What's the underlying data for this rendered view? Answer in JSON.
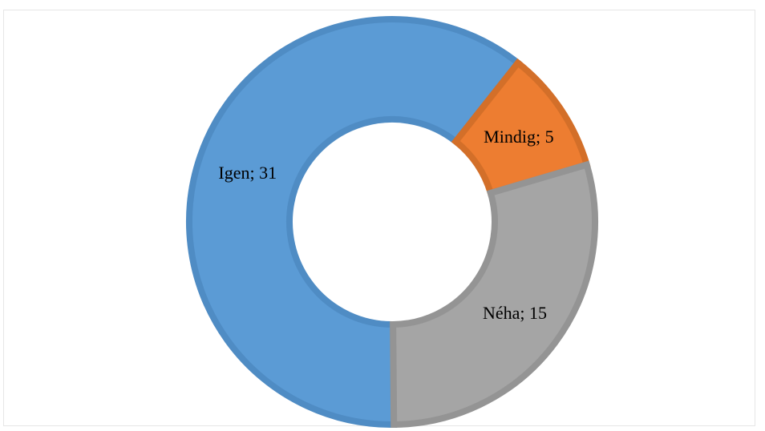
{
  "chart_data": {
    "type": "pie",
    "variant": "donut",
    "title": "",
    "categories": [
      "Igen",
      "Mindig",
      "Néha"
    ],
    "values": [
      31,
      5,
      15
    ],
    "labels": [
      "Igen; 31",
      "Mindig; 5",
      "Néha; 15"
    ],
    "colors": [
      "#5b9bd5",
      "#ed7d31",
      "#a5a5a5"
    ],
    "border_colors": [
      "#4f8cc4",
      "#d36f29",
      "#949494"
    ],
    "legend": "none",
    "grid": false
  }
}
